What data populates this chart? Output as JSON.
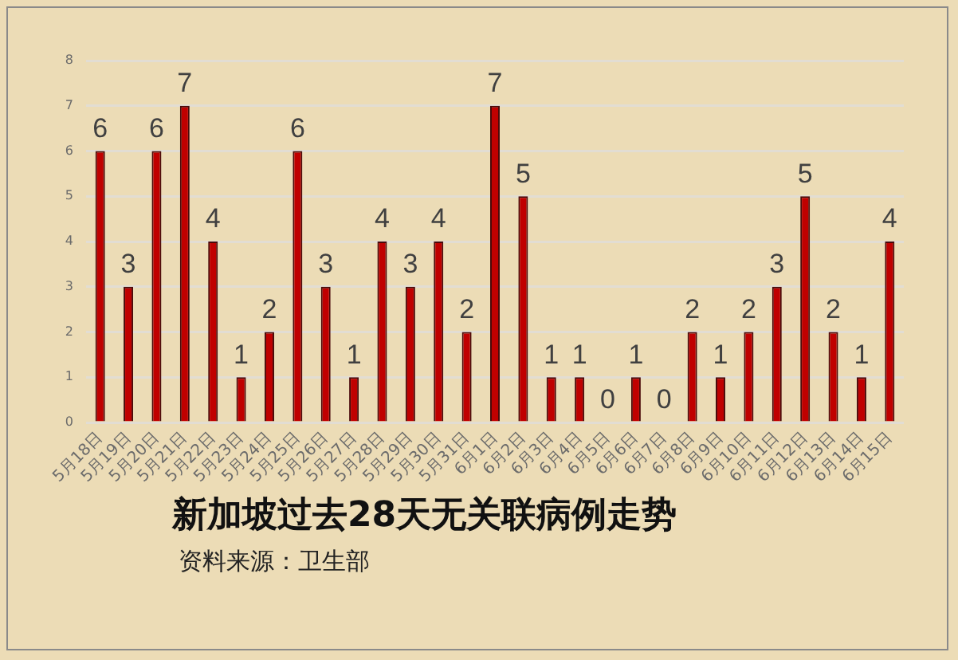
{
  "chart_data": {
    "type": "bar",
    "title": "新加坡过去28天无关联病例走势",
    "annotations": [
      "资料来源：卫生部"
    ],
    "categories": [
      "5月18日",
      "5月19日",
      "5月20日",
      "5月21日",
      "5月22日",
      "5月23日",
      "5月24日",
      "5月25日",
      "5月26日",
      "5月27日",
      "5月28日",
      "5月29日",
      "5月30日",
      "5月31日",
      "6月1日",
      "6月2日",
      "6月3日",
      "6月4日",
      "6月5日",
      "6月6日",
      "6月7日",
      "6月8日",
      "6月9日",
      "6月10日",
      "6月11日",
      "6月12日",
      "6月13日",
      "6月14日",
      "6月15日"
    ],
    "values": [
      6,
      3,
      6,
      7,
      4,
      1,
      2,
      6,
      3,
      1,
      4,
      3,
      4,
      2,
      7,
      5,
      1,
      1,
      0,
      1,
      0,
      2,
      1,
      2,
      3,
      5,
      2,
      1,
      4
    ],
    "color": "#c00000",
    "ylim": [
      0,
      8
    ],
    "yticks": [
      0,
      1,
      2,
      3,
      4,
      5,
      6,
      7,
      8
    ],
    "grid": "y",
    "data_labels": true
  }
}
